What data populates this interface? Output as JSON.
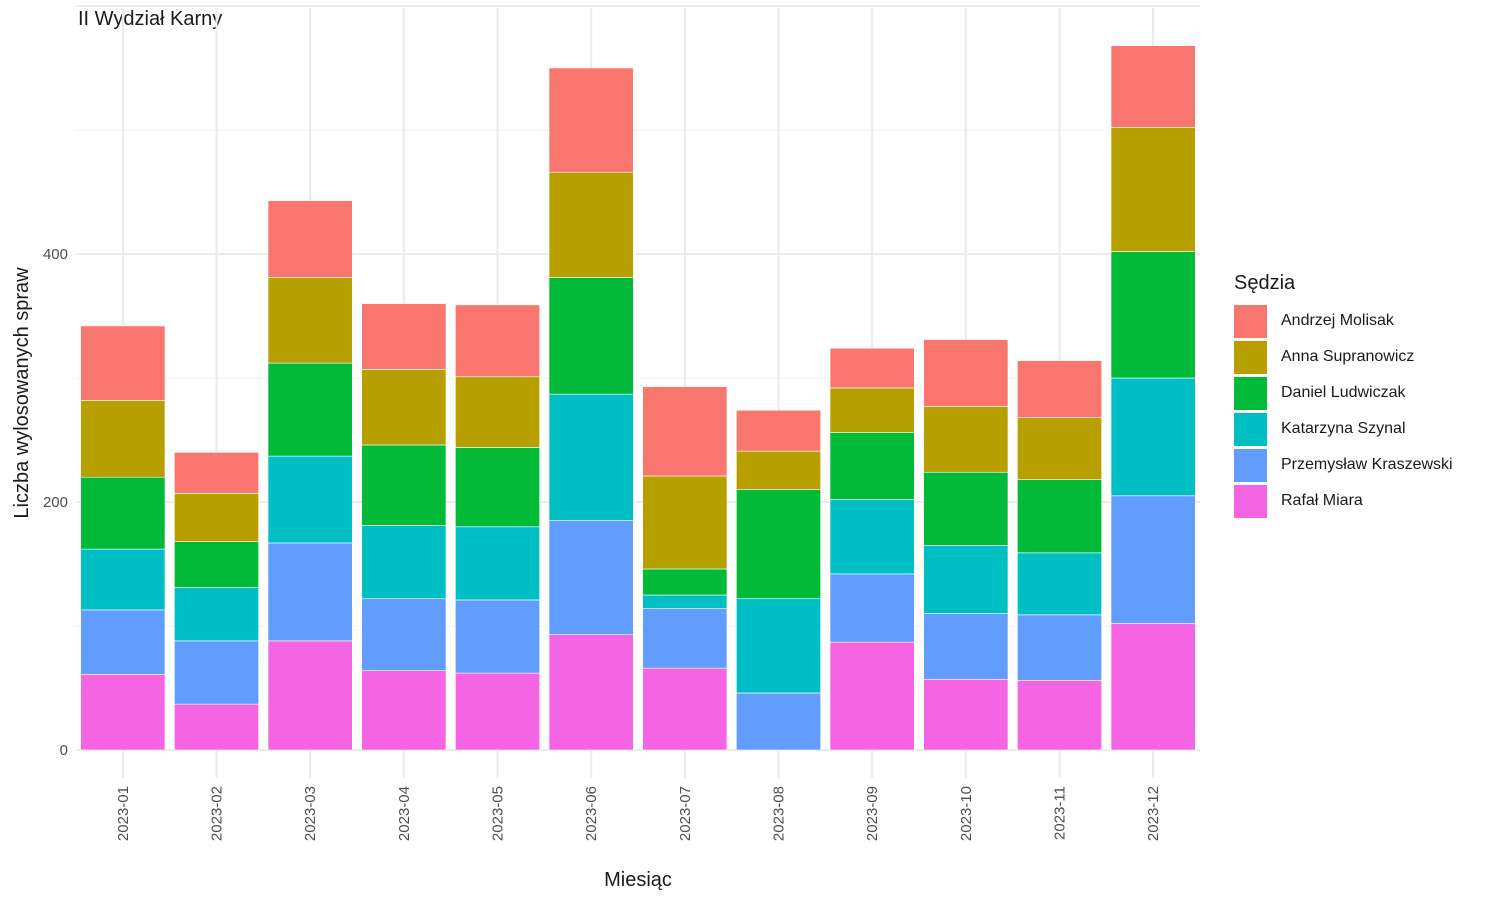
{
  "chart_data": {
    "type": "bar",
    "stacked": true,
    "title": "II Wydział Karny",
    "xlabel": "Miesiąc",
    "ylabel": "Liczba wylosowanych spraw",
    "ylim": [
      0,
      600
    ],
    "yticks": [
      0,
      200,
      400
    ],
    "grid": true,
    "legend_title": "Sędzia",
    "legend_position": "right",
    "categories": [
      "2023-01",
      "2023-02",
      "2023-03",
      "2023-04",
      "2023-05",
      "2023-06",
      "2023-07",
      "2023-08",
      "2023-09",
      "2023-10",
      "2023-11",
      "2023-12"
    ],
    "series": [
      {
        "name": "Rafał Miara",
        "color": "#F564E3",
        "values": [
          61,
          37,
          88,
          64,
          62,
          93,
          66,
          0,
          87,
          57,
          56,
          102
        ]
      },
      {
        "name": "Przemysław Kraszewski",
        "color": "#619CFF",
        "values": [
          52,
          51,
          79,
          58,
          59,
          92,
          48,
          46,
          55,
          53,
          53,
          103
        ]
      },
      {
        "name": "Katarzyna Szynal",
        "color": "#00BFC4",
        "values": [
          49,
          43,
          70,
          59,
          59,
          102,
          11,
          76,
          60,
          55,
          50,
          95
        ]
      },
      {
        "name": "Daniel Ludwiczak",
        "color": "#00BA38",
        "values": [
          58,
          37,
          75,
          65,
          64,
          94,
          21,
          88,
          54,
          59,
          59,
          102
        ]
      },
      {
        "name": "Anna Supranowicz",
        "color": "#B79F00",
        "values": [
          62,
          39,
          69,
          61,
          57,
          85,
          75,
          31,
          36,
          53,
          50,
          100
        ]
      },
      {
        "name": "Andrzej Molisak",
        "color": "#F8766D",
        "values": [
          60,
          33,
          62,
          53,
          58,
          84,
          72,
          33,
          32,
          54,
          46,
          66
        ]
      }
    ],
    "legend_order": [
      "Andrzej Molisak",
      "Anna Supranowicz",
      "Daniel Ludwiczak",
      "Katarzyna Szynal",
      "Przemysław Kraszewski",
      "Rafał Miara"
    ]
  }
}
